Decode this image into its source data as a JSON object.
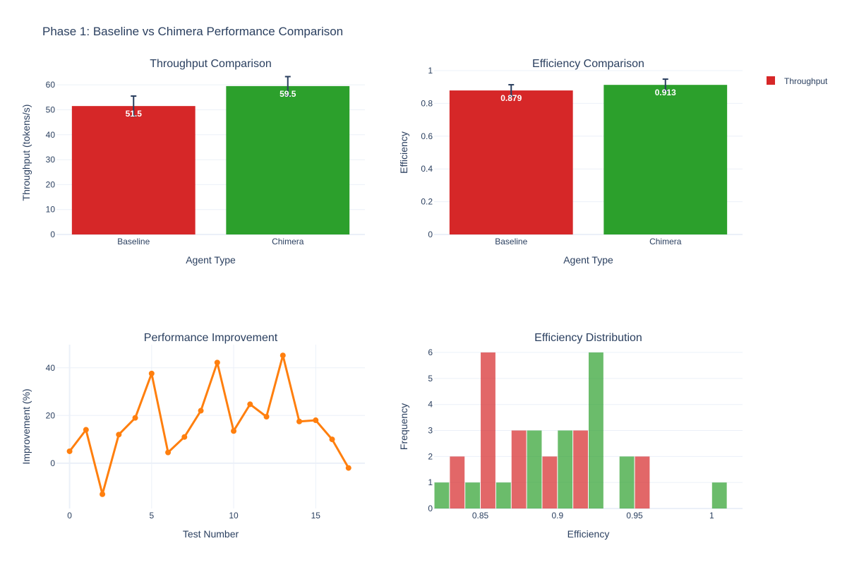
{
  "page_title": "Phase 1: Baseline vs Chimera Performance Comparison",
  "legend": {
    "entries": [
      {
        "label": "Throughput",
        "color": "#d62728"
      }
    ]
  },
  "chart_data": [
    {
      "id": "throughput",
      "type": "bar",
      "title": "Throughput Comparison",
      "xlabel": "Agent Type",
      "ylabel": "Throughput (tokens/s)",
      "categories": [
        "Baseline",
        "Chimera"
      ],
      "values": [
        51.5,
        59.5
      ],
      "error": [
        4.0,
        3.8
      ],
      "data_labels": [
        "51.5",
        "59.5"
      ],
      "colors": [
        "#d62728",
        "#2ca02c"
      ],
      "ylim": [
        0,
        65.7
      ],
      "yticks": [
        0,
        10,
        20,
        30,
        40,
        50,
        60
      ]
    },
    {
      "id": "efficiency",
      "type": "bar",
      "title": "Efficiency Comparison",
      "xlabel": "Agent Type",
      "ylabel": "Efficiency",
      "categories": [
        "Baseline",
        "Chimera"
      ],
      "values": [
        0.879,
        0.913
      ],
      "error": [
        0.035,
        0.035
      ],
      "data_labels": [
        "0.879",
        "0.913"
      ],
      "colors": [
        "#d62728",
        "#2ca02c"
      ],
      "ylim": [
        0,
        1.0
      ],
      "yticks": [
        0,
        0.2,
        0.4,
        0.6,
        0.8,
        1
      ]
    },
    {
      "id": "improvement",
      "type": "line",
      "title": "Performance Improvement",
      "xlabel": "Test Number",
      "ylabel": "Improvement (%)",
      "x": [
        0,
        1,
        2,
        3,
        4,
        5,
        6,
        7,
        8,
        9,
        10,
        11,
        12,
        13,
        14,
        15,
        16,
        17
      ],
      "y": [
        5,
        14,
        -13,
        12,
        19,
        37.6,
        4.5,
        11,
        22,
        42.2,
        13.5,
        24.7,
        19.5,
        45.2,
        17.5,
        18,
        10,
        -2
      ],
      "color": "#ff7f0e",
      "xlim": [
        -0.8,
        18.0
      ],
      "ylim": [
        -19,
        49.7
      ],
      "xticks": [
        0,
        5,
        10,
        15
      ],
      "yticks": [
        0,
        20,
        40
      ]
    },
    {
      "id": "distribution",
      "type": "bar",
      "title": "Efficiency Distribution",
      "xlabel": "Efficiency",
      "ylabel": "Frequency",
      "bin_width": 0.02,
      "bins": [
        0.83,
        0.85,
        0.87,
        0.89,
        0.91,
        0.93,
        0.95,
        0.97,
        0.99,
        1.01
      ],
      "series": [
        {
          "name": "",
          "color": "#2ca02c",
          "opacity": 0.7,
          "values": [
            1,
            1,
            1,
            3,
            3,
            6,
            2,
            0,
            0,
            1
          ]
        },
        {
          "name": "",
          "color": "#d62728",
          "opacity": 0.7,
          "values": [
            2,
            6,
            3,
            2,
            3,
            0,
            2,
            0,
            0,
            0
          ]
        }
      ],
      "xlim": [
        0.82,
        1.02
      ],
      "ylim": [
        0,
        6.3
      ],
      "xticks": [
        0.85,
        0.9,
        0.95,
        1
      ],
      "xtick_labels": [
        "0.85",
        "0.9",
        "0.95",
        "1"
      ],
      "yticks": [
        0,
        1,
        2,
        3,
        4,
        5,
        6
      ]
    }
  ]
}
